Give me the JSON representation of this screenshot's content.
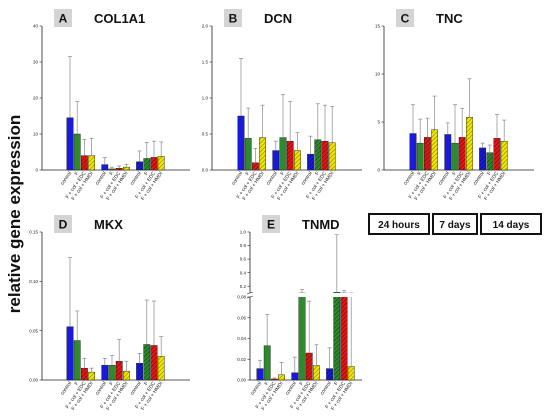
{
  "figure": {
    "ylabel": "relative gene expression",
    "legend": [
      "24 hours",
      "7 days",
      "14 days"
    ],
    "colors": {
      "control": "#1a1adc",
      "F": "#2f8a2f",
      "F + col + EDC": "#e01818",
      "F + col + HMDI": "#f0e800",
      "error_bar": "#888888",
      "badge": "#d4d4d4"
    }
  },
  "chart_data": [
    {
      "letter": "A",
      "title": "COL1A1",
      "type": "bar",
      "timepoints": [
        "24 hours",
        "7 days",
        "14 days"
      ],
      "categories": [
        "control",
        "F",
        "F + col + EDC",
        "F + col + HMDI"
      ],
      "ylim": [
        0,
        40
      ],
      "yticks": [
        0,
        10,
        20,
        30,
        40
      ],
      "values": [
        [
          14.5,
          10,
          4,
          4
        ],
        [
          1.5,
          0.3,
          0.5,
          0.8
        ],
        [
          2.3,
          3.2,
          3.5,
          3.8
        ]
      ],
      "errors": [
        [
          17,
          9,
          4.5,
          4.8
        ],
        [
          2,
          0.5,
          0.6,
          0.8
        ],
        [
          3,
          4.5,
          4.5,
          4
        ]
      ]
    },
    {
      "letter": "B",
      "title": "DCN",
      "type": "bar",
      "timepoints": [
        "24 hours",
        "7 days",
        "14 days"
      ],
      "categories": [
        "control",
        "F",
        "F + col + EDC",
        "F + col + HMDI"
      ],
      "ylim": [
        0,
        2.0
      ],
      "yticks": [
        0.0,
        0.5,
        1.0,
        1.5,
        2.0
      ],
      "values": [
        [
          0.75,
          0.44,
          0.1,
          0.45
        ],
        [
          0.27,
          0.45,
          0.4,
          0.27
        ],
        [
          0.22,
          0.42,
          0.4,
          0.38
        ]
      ],
      "errors": [
        [
          0.8,
          0.42,
          0.2,
          0.45
        ],
        [
          0.13,
          0.6,
          0.55,
          0.25
        ],
        [
          0.25,
          0.5,
          0.5,
          0.5
        ]
      ]
    },
    {
      "letter": "C",
      "title": "TNC",
      "type": "bar",
      "timepoints": [
        "24 hours",
        "7 days",
        "14 days"
      ],
      "categories": [
        "control",
        "F",
        "F + col + EDC",
        "F + col + HMDI"
      ],
      "ylim": [
        0,
        15
      ],
      "yticks": [
        0,
        5,
        10,
        15
      ],
      "values": [
        [
          3.8,
          2.8,
          3.4,
          4.2
        ],
        [
          3.7,
          2.8,
          3.4,
          5.5
        ],
        [
          2.3,
          1.8,
          3.3,
          3.0
        ]
      ],
      "errors": [
        [
          3,
          2.5,
          2,
          3.5
        ],
        [
          1.2,
          4,
          3,
          4
        ],
        [
          0.5,
          0.8,
          2.5,
          2.2
        ]
      ]
    },
    {
      "letter": "D",
      "title": "MKX",
      "type": "bar",
      "timepoints": [
        "24 hours",
        "7 days",
        "14 days"
      ],
      "categories": [
        "control",
        "F",
        "F + col + EDC",
        "F + col + HMDI"
      ],
      "ylim": [
        0,
        0.15
      ],
      "yticks": [
        0.0,
        0.05,
        0.1,
        0.15
      ],
      "values": [
        [
          0.054,
          0.04,
          0.012,
          0.008
        ],
        [
          0.015,
          0.015,
          0.019,
          0.009
        ],
        [
          0.017,
          0.036,
          0.035,
          0.024
        ]
      ],
      "errors": [
        [
          0.07,
          0.03,
          0.01,
          0.004
        ],
        [
          0.007,
          0.01,
          0.022,
          0.01
        ],
        [
          0.01,
          0.045,
          0.045,
          0.02
        ]
      ]
    },
    {
      "letter": "E",
      "title": "TNMD",
      "type": "bar",
      "broken_axis": true,
      "timepoints": [
        "24 hours",
        "7 days",
        "14 days"
      ],
      "categories": [
        "control",
        "F",
        "F + col + EDC",
        "F + col + HMDI"
      ],
      "ylim_lower": [
        0,
        0.08
      ],
      "yticks_lower": [
        0.0,
        0.02,
        0.04,
        0.06,
        0.08
      ],
      "ylim_upper": [
        0.1,
        1.0
      ],
      "yticks_upper": [
        0.2,
        0.4,
        0.6,
        0.8,
        1.0
      ],
      "values": [
        [
          0.011,
          0.033,
          0.001,
          0.005
        ],
        [
          0.007,
          0.09,
          0.026,
          0.014
        ],
        [
          0.011,
          0.11,
          0.083,
          0.013
        ]
      ],
      "errors": [
        [
          0.008,
          0.03,
          0.001,
          0.012
        ],
        [
          0.015,
          0.06,
          0.05,
          0.02
        ],
        [
          0.02,
          0.85,
          0.05,
          0.08
        ]
      ]
    }
  ]
}
